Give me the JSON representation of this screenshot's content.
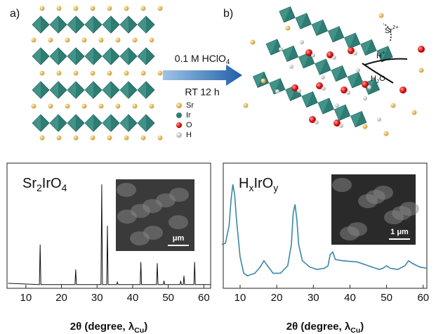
{
  "panel_a": {
    "label": "a)"
  },
  "panel_b": {
    "label": "b)"
  },
  "reaction": {
    "reagent": [
      "0.1 M HClO",
      "4"
    ],
    "condition": "RT 12 h"
  },
  "legend": [
    "Sr",
    "Ir",
    "O",
    "H"
  ],
  "annotations": {
    "sr_ion": [
      "Sr",
      "2+"
    ],
    "proton": [
      "H",
      "+"
    ],
    "water": [
      "H",
      "2",
      "O"
    ]
  },
  "chart_data": [
    {
      "type": "line",
      "title": [
        "Sr",
        "2",
        "IrO",
        "4"
      ],
      "color": "#111111",
      "x": [
        5,
        13.8,
        14,
        14.2,
        23.8,
        24,
        24.2,
        31.1,
        31.3,
        31.5,
        32.7,
        32.9,
        33.1,
        35.5,
        35.7,
        35.9,
        42.1,
        42.3,
        42.5,
        46.7,
        46.9,
        47.1,
        48.6,
        48.8,
        49,
        53.3,
        53.5,
        53.7,
        54.2,
        54.4,
        54.6,
        57.2,
        57.4,
        57.6,
        62
      ],
      "values": [
        4,
        3,
        35,
        3,
        3,
        15,
        3,
        3,
        83,
        3,
        3,
        50,
        3,
        3,
        5,
        3,
        3,
        21,
        3,
        3,
        20,
        3,
        3,
        6,
        3,
        3,
        6,
        3,
        3,
        10,
        3,
        3,
        21,
        3,
        3
      ],
      "xlim": [
        4.7,
        61.9
      ],
      "xticks": [
        10,
        20,
        30,
        40,
        50,
        60
      ],
      "ylim": [
        0,
        100
      ],
      "xlabel": [
        "2θ (degree, λ",
        "Cu",
        ")"
      ],
      "inset_scale": "μm"
    },
    {
      "type": "line",
      "title": [
        "H",
        "x",
        "IrO",
        "y"
      ],
      "color": "#3a86a8",
      "x": [
        5,
        6,
        7,
        7.5,
        8,
        8.5,
        9,
        10,
        11,
        12,
        14,
        15.5,
        16.5,
        17.5,
        19,
        21,
        23,
        24,
        24.5,
        25,
        25.5,
        26,
        27,
        29,
        31,
        33,
        34,
        34.6,
        35.3,
        36,
        38,
        42,
        46,
        48,
        49,
        50,
        51,
        53,
        55,
        56,
        57,
        59,
        61
      ],
      "values": [
        35,
        36,
        50,
        70,
        83,
        75,
        55,
        25,
        12,
        10,
        12,
        17,
        22,
        18,
        12,
        12,
        18,
        35,
        60,
        67,
        55,
        35,
        22,
        17,
        15,
        16,
        18,
        27,
        29,
        23,
        22,
        21,
        17,
        15,
        16,
        18,
        16,
        15,
        18,
        22,
        20,
        17,
        16
      ],
      "xlim": [
        5.4,
        61
      ],
      "xticks": [
        10,
        20,
        30,
        40,
        50,
        60
      ],
      "ylim": [
        0,
        100
      ],
      "xlabel": [
        "2θ (degree, λ",
        "Cu",
        ")"
      ],
      "inset_scale": "1 μm"
    }
  ]
}
